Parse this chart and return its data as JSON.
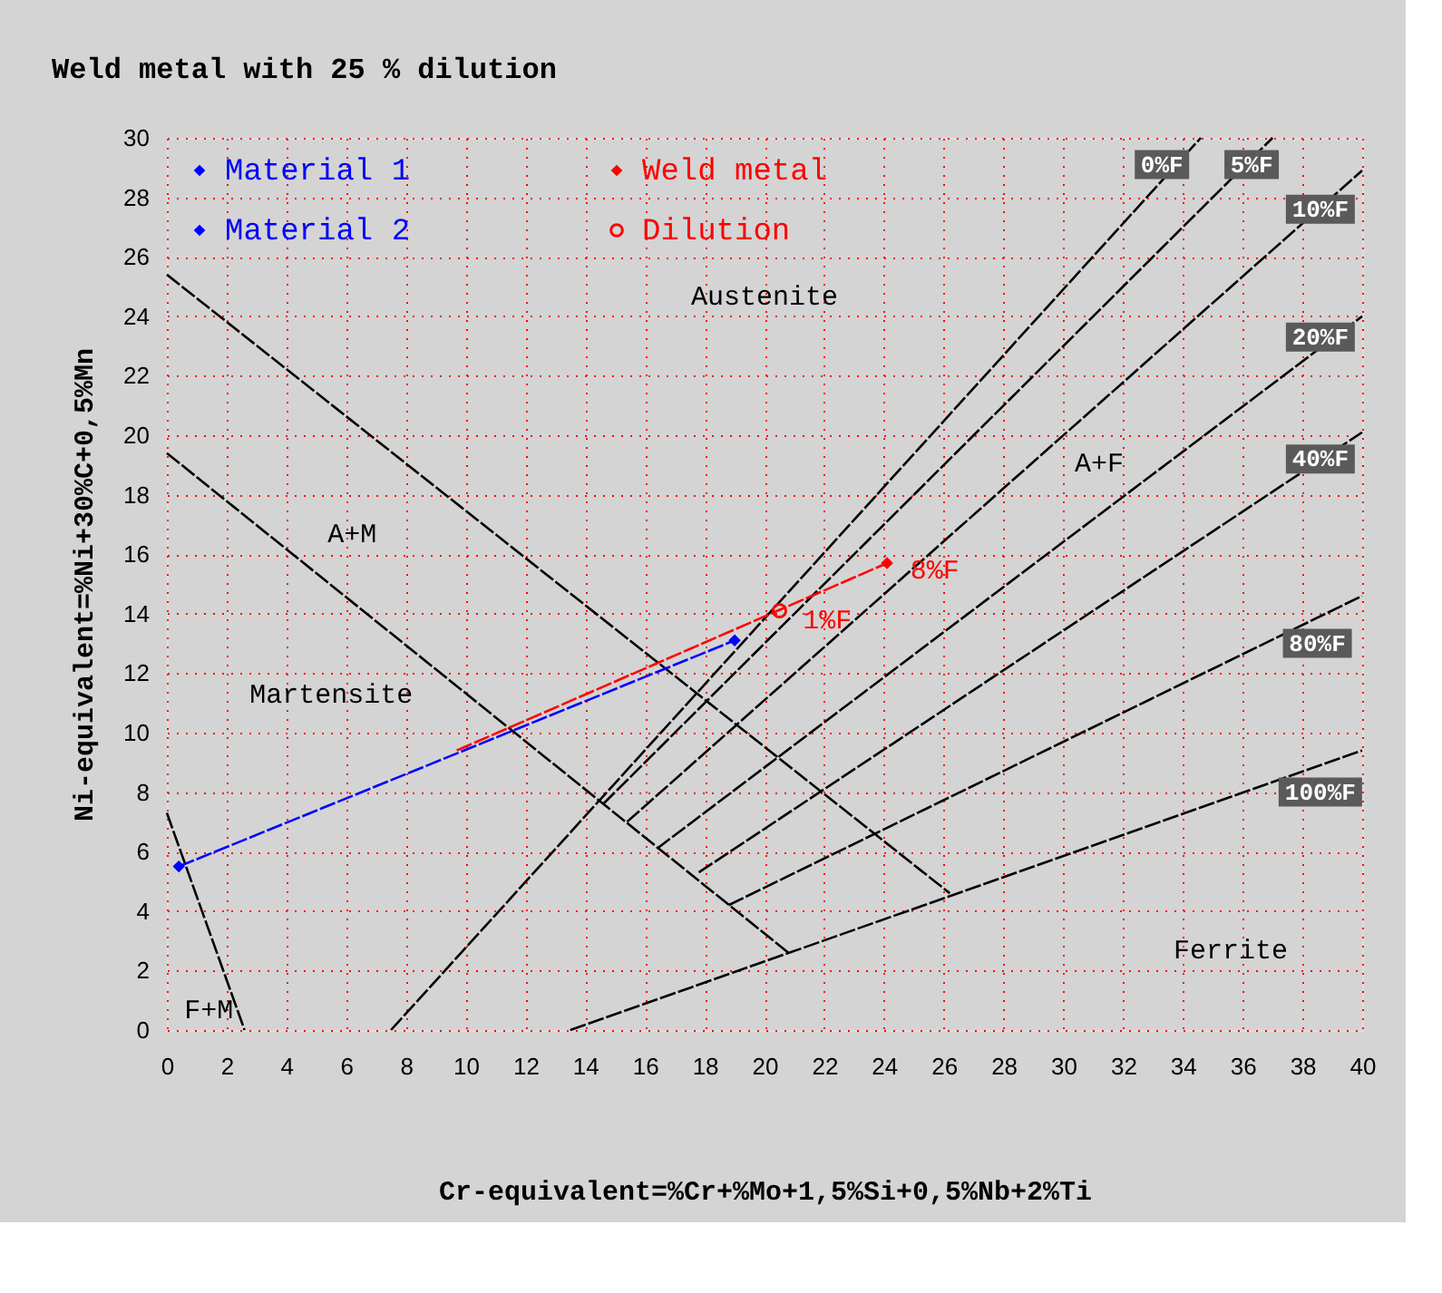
{
  "chart_data": {
    "type": "line",
    "title": "Weld metal with 25 % dilution",
    "xlabel": "Cr-equivalent=%Cr+%Mo+1,5%Si+0,5%Nb+2%Ti",
    "ylabel": "Ni-equivalent=%Ni+30%C+0,5%Mn",
    "xlim": [
      0,
      40
    ],
    "ylim": [
      0,
      30
    ],
    "xticks": [
      0,
      2,
      4,
      6,
      8,
      10,
      12,
      14,
      16,
      18,
      20,
      22,
      24,
      26,
      28,
      30,
      32,
      34,
      36,
      38,
      40
    ],
    "yticks": [
      0,
      2,
      4,
      6,
      8,
      10,
      12,
      14,
      16,
      18,
      20,
      22,
      24,
      26,
      28,
      30
    ],
    "grid": true,
    "legend": "top left",
    "line_style": "dashed",
    "series": [
      {
        "color": "#000000",
        "x": [
          0,
          26.2
        ],
        "values": [
          25.4,
          4.6
        ]
      },
      {
        "color": "#000000",
        "x": [
          0,
          20.8
        ],
        "values": [
          19.4,
          2.6
        ]
      },
      {
        "color": "#000000",
        "x": [
          0,
          2.6
        ],
        "values": [
          7.3,
          0
        ]
      },
      {
        "color": "#000000",
        "x": [
          7.5,
          34.6
        ],
        "values": [
          0,
          30
        ]
      },
      {
        "color": "#000000",
        "x": [
          14.6,
          37.0
        ],
        "values": [
          7.6,
          30
        ]
      },
      {
        "color": "#000000",
        "x": [
          15.4,
          40
        ],
        "values": [
          7.0,
          28.9
        ]
      },
      {
        "color": "#000000",
        "x": [
          16.4,
          40
        ],
        "values": [
          6.1,
          24.0
        ]
      },
      {
        "color": "#000000",
        "x": [
          17.8,
          40
        ],
        "values": [
          5.3,
          20.1
        ]
      },
      {
        "color": "#000000",
        "x": [
          18.8,
          40
        ],
        "values": [
          4.2,
          14.6
        ]
      },
      {
        "color": "#000000",
        "x": [
          13.5,
          40
        ],
        "values": [
          0,
          9.4
        ]
      },
      {
        "color": "#0000ff",
        "x": [
          0.4,
          19.0
        ],
        "values": [
          5.5,
          13.1
        ]
      },
      {
        "color": "#ff0000",
        "x": [
          9.7,
          24.1
        ],
        "values": [
          9.4,
          15.7
        ]
      },
      {
        "type": "scatter",
        "name": "Material 1",
        "color": "#0000ff",
        "marker": "diamond",
        "x": [
          0.4
        ],
        "values": [
          5.5
        ]
      },
      {
        "type": "scatter",
        "name": "Material 2",
        "color": "#0000ff",
        "marker": "diamond",
        "x": [
          19.0
        ],
        "values": [
          13.1
        ]
      },
      {
        "type": "scatter",
        "name": "Weld metal",
        "color": "#ff0000",
        "marker": "diamond",
        "x": [
          24.1
        ],
        "values": [
          15.7
        ]
      },
      {
        "type": "scatter",
        "name": "Dilution",
        "color": "#ff0000",
        "marker": "circle",
        "x": [
          20.5
        ],
        "values": [
          14.1
        ]
      }
    ],
    "annotations": [
      "Austenite",
      "A+F",
      "A+M",
      "Martensite",
      "Ferrite",
      "F+M",
      "0%F",
      "5%F",
      "10%F",
      "20%F",
      "40%F",
      "80%F",
      "100%F",
      "1%F",
      "8%F"
    ]
  }
}
